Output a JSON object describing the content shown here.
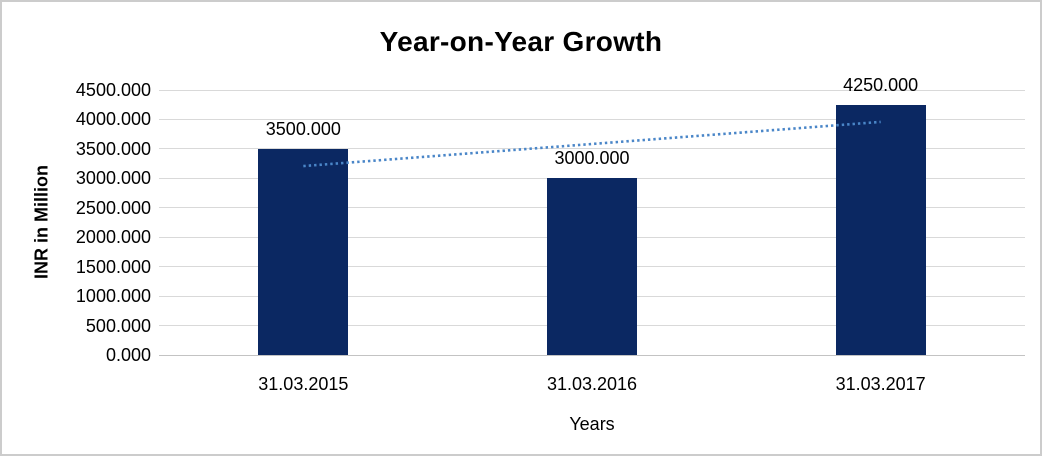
{
  "window": {
    "background": "#ffffff",
    "border_color": "#cccccc"
  },
  "chart_data": {
    "type": "bar",
    "title": "Year-on-Year Growth",
    "xlabel": "Years",
    "ylabel": "INR in Million",
    "categories": [
      "31.03.2015",
      "31.03.2016",
      "31.03.2017"
    ],
    "values": [
      3500,
      3000,
      4250
    ],
    "value_labels": [
      "3500.000",
      "3000.000",
      "4250.000"
    ],
    "ylim": [
      0,
      4500
    ],
    "y_tick_step": 500,
    "y_ticks": [
      0,
      500,
      1000,
      1500,
      2000,
      2500,
      3000,
      3500,
      4000,
      4500
    ],
    "y_tick_labels": [
      "0.000",
      "500.000",
      "1000.000",
      "1500.000",
      "2000.000",
      "2500.000",
      "3000.000",
      "3500.000",
      "4000.000",
      "4500.000"
    ],
    "grid": true,
    "legend_position": "none",
    "bar_color": "#0b2862",
    "gridline_color": "#d9d9d9",
    "trendline": {
      "style": "dotted",
      "color": "#4a86c8",
      "start_value": 3208.333,
      "end_value": 3958.333
    }
  }
}
